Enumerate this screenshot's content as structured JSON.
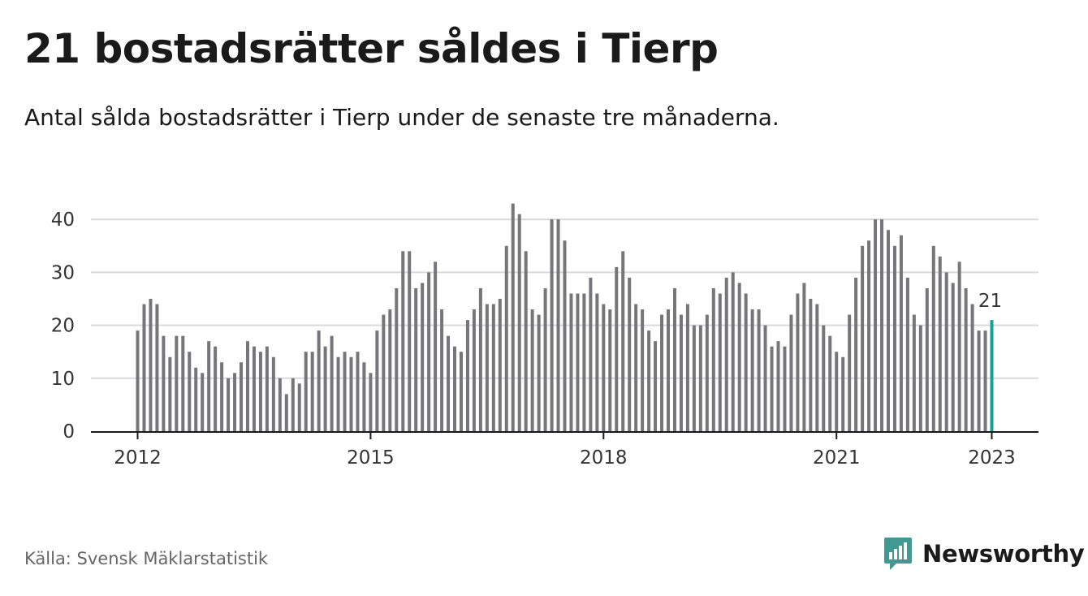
{
  "title": "21 bostadsrätter såldes i Tierp",
  "subtitle": "Antal sålda bostadsrätter i Tierp under de senaste tre månaderna.",
  "source": "Källa: Svensk Mäklarstatistik",
  "brand": {
    "name": "Newsworthy",
    "icon": "newsworthy-logo-icon",
    "color": "#419a92"
  },
  "colors": {
    "bar": "#76757a",
    "highlight": "#17a096",
    "grid": "#d9d9d9",
    "axis": "#1a1a1a"
  },
  "chart_data": {
    "type": "bar",
    "x_start": "2012-01",
    "x_end": "2023-01",
    "x_ticks": [
      "2012",
      "2015",
      "2018",
      "2021",
      "2023"
    ],
    "y_ticks": [
      0,
      10,
      20,
      30,
      40
    ],
    "ylim": [
      0,
      45
    ],
    "grid": true,
    "highlight_last": true,
    "last_label": "21",
    "series": [
      {
        "values": [
          19,
          24,
          25,
          24,
          18,
          14,
          18,
          18,
          15,
          12,
          11,
          17,
          16,
          13,
          10,
          11,
          13,
          17,
          16,
          15,
          16,
          14,
          10,
          7,
          10,
          9,
          15,
          15,
          19,
          16,
          18,
          14,
          15,
          14,
          15,
          13,
          11,
          19,
          22,
          23,
          27,
          34,
          34,
          27,
          28,
          30,
          32,
          23,
          18,
          16,
          15,
          21,
          23,
          27,
          24,
          24,
          25,
          35,
          43,
          41,
          34,
          23,
          22,
          27,
          40,
          40,
          36,
          26,
          26,
          26,
          29,
          26,
          24,
          23,
          31,
          34,
          29,
          24,
          23,
          19,
          17,
          22,
          23,
          27,
          22,
          24,
          20,
          20,
          22,
          27,
          26,
          29,
          30,
          28,
          26,
          23,
          23,
          20,
          16,
          17,
          16,
          22,
          26,
          28,
          25,
          24,
          20,
          18,
          15,
          14,
          22,
          29,
          35,
          36,
          40,
          40,
          38,
          35,
          37,
          29,
          22,
          20,
          27,
          35,
          33,
          30,
          28,
          32,
          27,
          24,
          19,
          19,
          21
        ]
      }
    ]
  }
}
